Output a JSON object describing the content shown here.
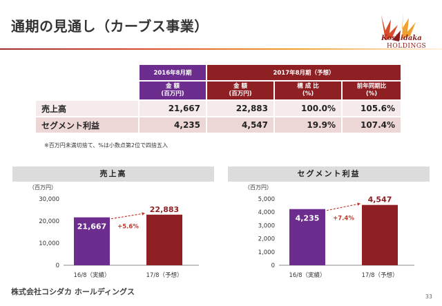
{
  "title": "通期の見通し（カーブス事業）",
  "logo": {
    "brand": "Koshidaka",
    "sub": "HOLDINGS"
  },
  "table": {
    "header_2016": "2016年8月期",
    "header_2017": "2017年8月期（予想）",
    "sub_amount": [
      "金 額",
      "(百万円)"
    ],
    "sub_ratio": [
      "構 成 比",
      "(%)"
    ],
    "sub_yoy": [
      "前年同期比",
      "(%)"
    ],
    "rows": [
      {
        "label": "売上高",
        "v2016": "21,667",
        "v2017": "22,883",
        "ratio": "100.0%",
        "yoy": "105.6%"
      },
      {
        "label": "セグメント利益",
        "v2016": "4,235",
        "v2017": "4,547",
        "ratio": "19.9%",
        "yoy": "107.4%"
      }
    ]
  },
  "note": "※百万円未満切捨て、%は小数点第2位で四捨五入",
  "chart_data": [
    {
      "type": "bar",
      "title": "売上高",
      "ylabel": "（百万円）",
      "categories": [
        "16/8（実績）",
        "17/8（予想）"
      ],
      "values": [
        21667,
        22883
      ],
      "value_labels": [
        "21,667",
        "22,883"
      ],
      "ylim": [
        0,
        30000
      ],
      "yticks": [
        0,
        10000,
        20000,
        30000
      ],
      "ytick_labels": [
        "0",
        "10,000",
        "20,000",
        "30,000"
      ],
      "growth_label": "+5.6%",
      "colors": [
        "#6d2d8f",
        "#8e1f22"
      ]
    },
    {
      "type": "bar",
      "title": "セグメント利益",
      "ylabel": "（百万円）",
      "categories": [
        "16/8（実績）",
        "17/8（予想）"
      ],
      "values": [
        4235,
        4547
      ],
      "value_labels": [
        "4,235",
        "4,547"
      ],
      "ylim": [
        0,
        5000
      ],
      "yticks": [
        0,
        1000,
        2000,
        3000,
        4000,
        5000
      ],
      "ytick_labels": [
        "0",
        "1,000",
        "2,000",
        "3,000",
        "4,000",
        "5,000"
      ],
      "growth_label": "+7.4%",
      "colors": [
        "#6d2d8f",
        "#8e1f22"
      ]
    }
  ],
  "footer": "株式会社コシダカ ホールディングス",
  "page_number": "33"
}
